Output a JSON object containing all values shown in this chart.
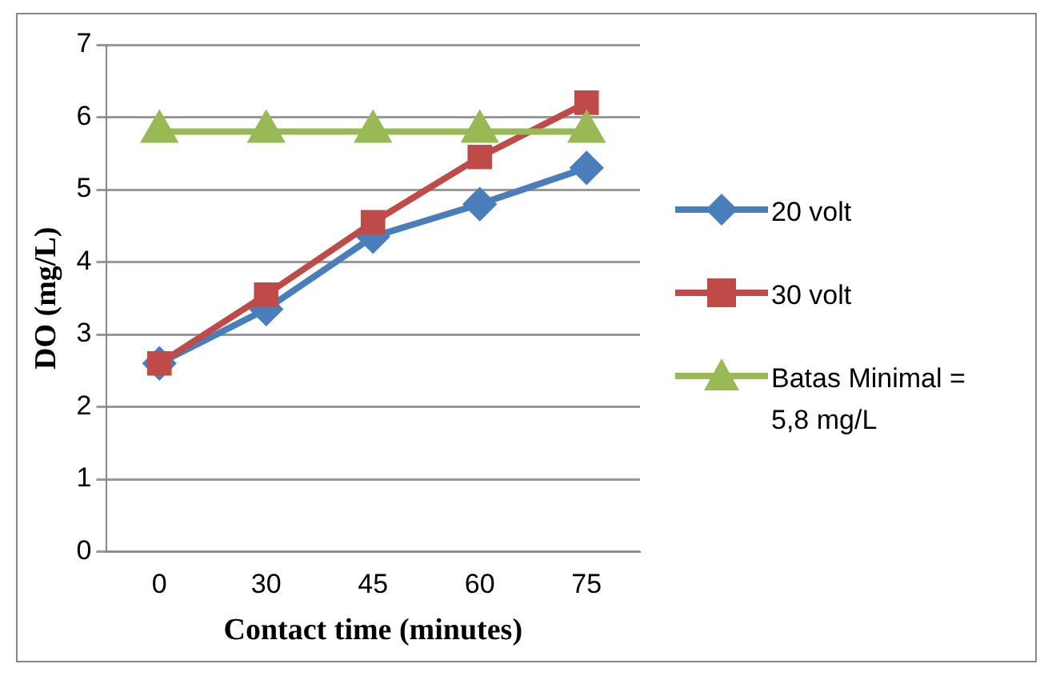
{
  "chart_data": {
    "type": "line",
    "xlabel": "Contact time (minutes)",
    "ylabel": "DO (mg/L)",
    "categories": [
      "0",
      "30",
      "45",
      "60",
      "75"
    ],
    "series": [
      {
        "name": "20 volt",
        "color": "#4a7ebb",
        "values": [
          2.6,
          3.35,
          4.35,
          4.8,
          5.3
        ],
        "marker": "diamond"
      },
      {
        "name": "30 volt",
        "color": "#be4b48",
        "values": [
          2.6,
          3.55,
          4.55,
          5.45,
          6.2
        ],
        "marker": "square"
      },
      {
        "name": "Batas Minimal = 5,8 mg/L",
        "color": "#98b954",
        "values": [
          5.8,
          5.8,
          5.8,
          5.8,
          5.8
        ],
        "marker": "triangle"
      }
    ],
    "ylim": [
      0,
      7
    ],
    "yticks": [
      0,
      1,
      2,
      3,
      4,
      5,
      6,
      7
    ],
    "grid": "y",
    "legend": "right",
    "line_style": "solid"
  }
}
